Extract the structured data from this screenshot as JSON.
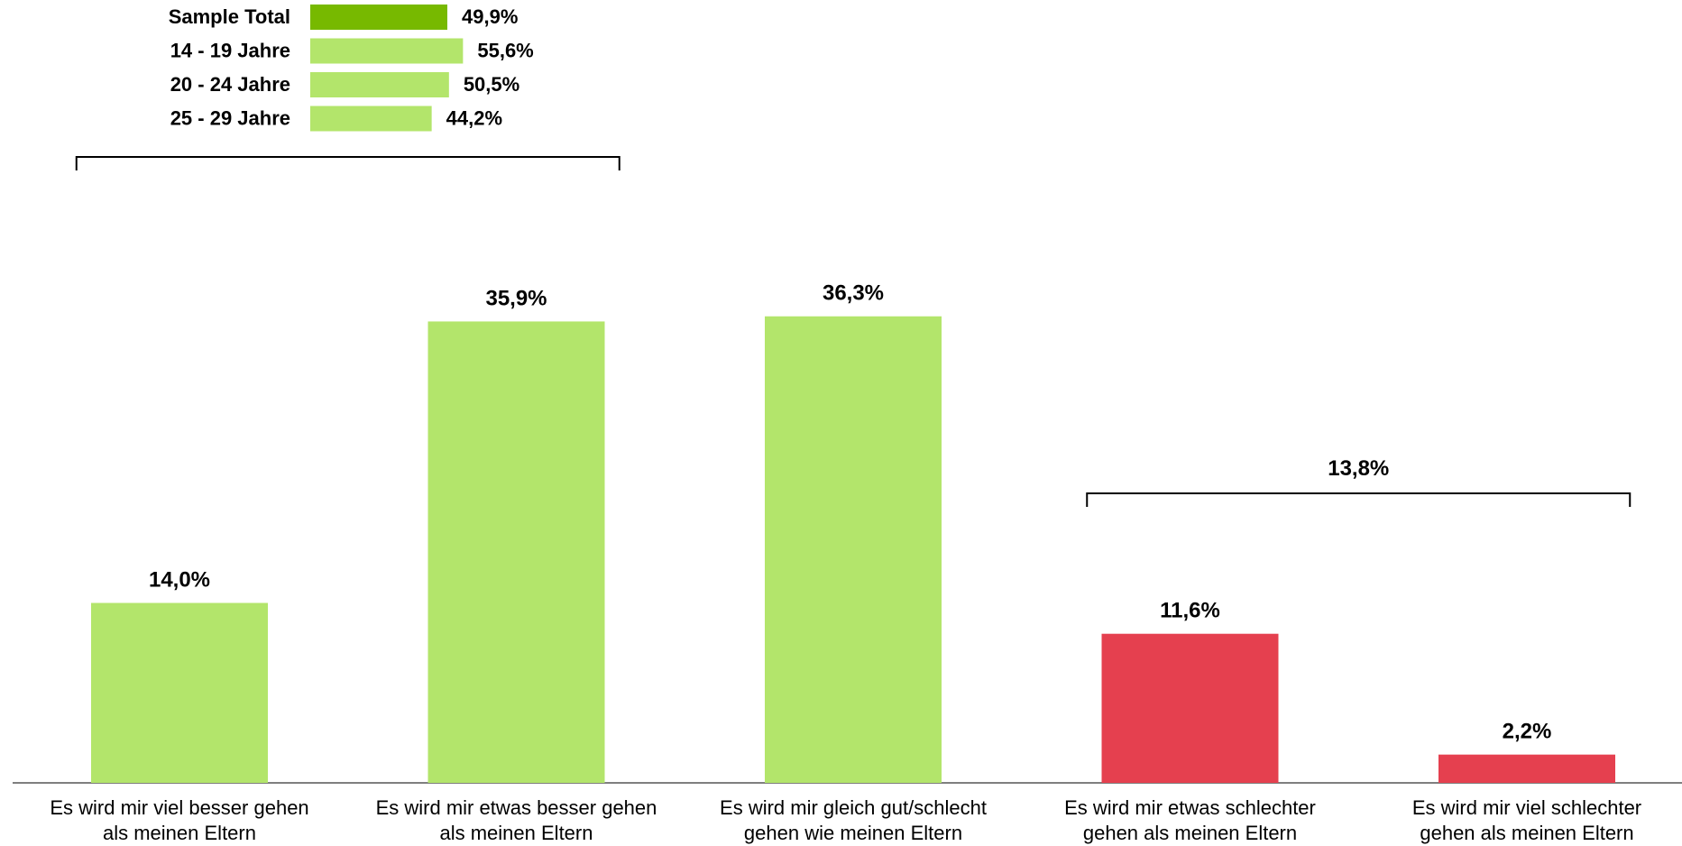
{
  "chart_data": {
    "type": "bar",
    "categories": [
      [
        "Es wird mir viel besser gehen",
        "als meinen Eltern"
      ],
      [
        "Es wird mir etwas besser gehen",
        "als meinen Eltern"
      ],
      [
        "Es wird mir gleich gut/schlecht",
        "gehen wie meinen Eltern"
      ],
      [
        "Es wird mir etwas schlechter",
        "gehen als meinen Eltern"
      ],
      [
        "Es wird mir viel schlechter",
        "gehen als meinen Eltern"
      ]
    ],
    "values": [
      14.0,
      35.9,
      36.3,
      11.6,
      2.2
    ],
    "value_labels": [
      "14,0%",
      "35,9%",
      "36,3%",
      "11,6%",
      "2,2%"
    ],
    "bar_colors": [
      "#b3e56b",
      "#b3e56b",
      "#b3e56b",
      "#e5404f",
      "#e5404f"
    ],
    "ylim": [
      0,
      40
    ],
    "grid": false,
    "bracket_groups": [
      {
        "range": [
          0,
          1
        ],
        "value_label": ""
      },
      {
        "range": [
          3,
          4
        ],
        "value_label": "13,8%"
      }
    ],
    "inset": {
      "type": "bar",
      "orientation": "horizontal",
      "categories": [
        "Sample Total",
        "14 - 19 Jahre",
        "20 - 24 Jahre",
        "25 - 29 Jahre"
      ],
      "values": [
        49.9,
        55.6,
        50.5,
        44.2
      ],
      "value_labels": [
        "49,9%",
        "55,6%",
        "50,5%",
        "44,2%"
      ],
      "colors": [
        "#77b900",
        "#b3e56b",
        "#b3e56b",
        "#b3e56b"
      ]
    }
  }
}
